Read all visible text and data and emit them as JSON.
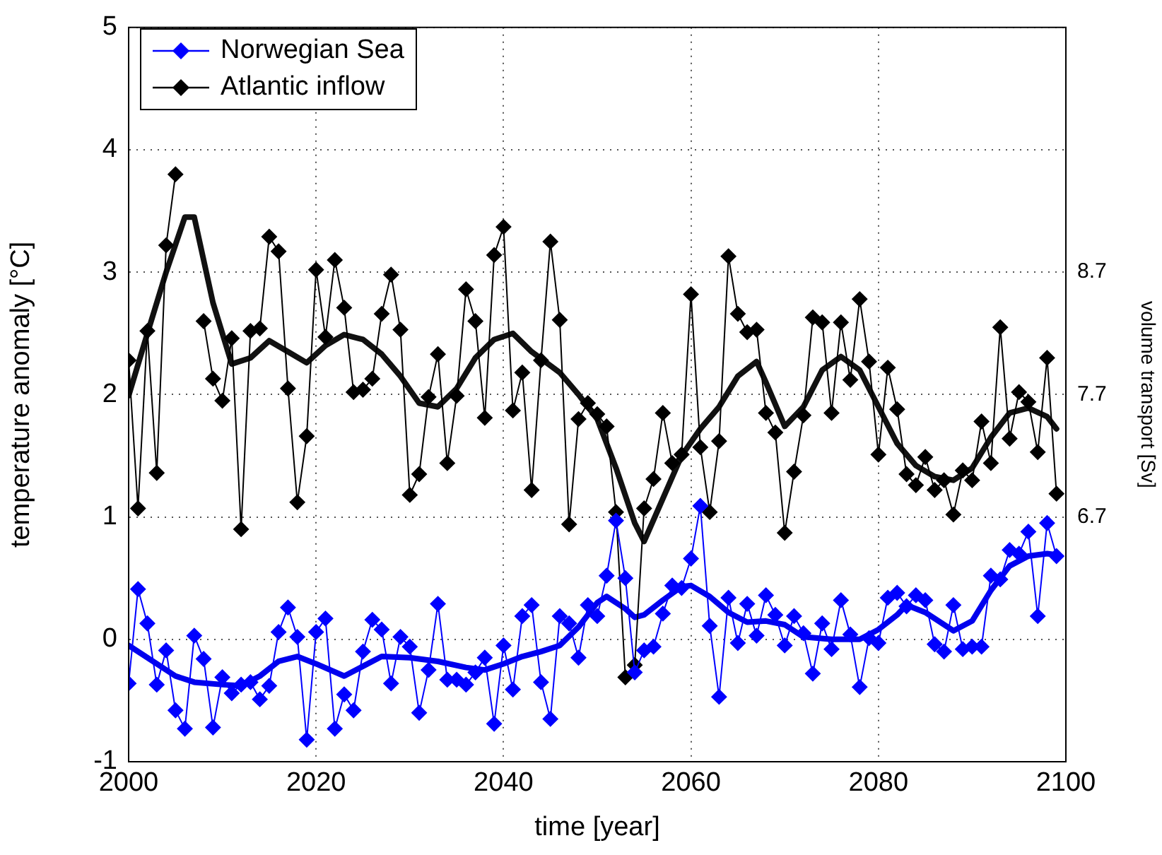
{
  "chart_data": {
    "type": "line",
    "xlabel": "time [year]",
    "ylabel": "temperature anomaly [°C]",
    "y2label": "volume transport [Sv]",
    "x": [
      2000,
      2001,
      2002,
      2003,
      2004,
      2005,
      2006,
      2007,
      2008,
      2009,
      2010,
      2011,
      2012,
      2013,
      2014,
      2015,
      2016,
      2017,
      2018,
      2019,
      2020,
      2021,
      2022,
      2023,
      2024,
      2025,
      2026,
      2027,
      2028,
      2029,
      2030,
      2031,
      2032,
      2033,
      2034,
      2035,
      2036,
      2037,
      2038,
      2039,
      2040,
      2041,
      2042,
      2043,
      2044,
      2045,
      2046,
      2047,
      2048,
      2049,
      2050,
      2051,
      2052,
      2053,
      2054,
      2055,
      2056,
      2057,
      2058,
      2059,
      2060,
      2061,
      2062,
      2063,
      2064,
      2065,
      2066,
      2067,
      2068,
      2069,
      2070,
      2071,
      2072,
      2073,
      2074,
      2075,
      2076,
      2077,
      2078,
      2079,
      2080,
      2081,
      2082,
      2083,
      2084,
      2085,
      2086,
      2087,
      2088,
      2089,
      2090,
      2091,
      2092,
      2093,
      2094,
      2095,
      2096,
      2097,
      2098,
      2099
    ],
    "series": [
      {
        "name": "Norwegian Sea",
        "color": "#0000ff",
        "marker": "diamond",
        "values": [
          -0.36,
          0.41,
          0.13,
          -0.37,
          -0.09,
          -0.58,
          -0.73,
          0.03,
          -0.16,
          -0.72,
          -0.31,
          -0.44,
          -0.37,
          -0.35,
          -0.49,
          -0.38,
          0.06,
          0.26,
          0.02,
          -0.82,
          0.06,
          0.17,
          -0.73,
          -0.45,
          -0.58,
          -0.1,
          0.16,
          0.08,
          -0.36,
          0.02,
          -0.06,
          -0.6,
          -0.25,
          0.29,
          -0.33,
          -0.33,
          -0.37,
          -0.27,
          -0.15,
          -0.69,
          -0.05,
          -0.41,
          0.19,
          0.28,
          -0.35,
          -0.65,
          0.19,
          0.13,
          -0.15,
          0.28,
          0.19,
          0.52,
          0.97,
          0.5,
          -0.27,
          -0.09,
          -0.06,
          0.21,
          0.44,
          0.42,
          0.66,
          1.09,
          0.11,
          -0.47,
          0.34,
          -0.03,
          0.29,
          0.03,
          0.36,
          0.2,
          -0.05,
          0.19,
          0.05,
          -0.28,
          0.13,
          -0.08,
          0.32,
          0.04,
          -0.39,
          0.01,
          -0.03,
          0.34,
          0.38,
          0.27,
          0.36,
          0.32,
          -0.04,
          -0.1,
          0.28,
          -0.08,
          -0.06,
          -0.06,
          0.52,
          0.49,
          0.73,
          0.7,
          0.88,
          0.19,
          0.95,
          0.68
        ]
      },
      {
        "name": "Atlantic inflow",
        "color": "#000000",
        "marker": "diamond",
        "values": [
          2.28,
          1.07,
          2.52,
          1.36,
          3.22,
          3.8,
          null,
          null,
          2.6,
          2.13,
          1.95,
          2.46,
          0.9,
          2.52,
          2.54,
          3.29,
          3.17,
          2.05,
          1.12,
          1.66,
          3.02,
          2.47,
          3.1,
          2.71,
          2.02,
          2.04,
          2.13,
          2.66,
          2.98,
          2.53,
          1.18,
          1.35,
          1.98,
          2.33,
          1.44,
          1.99,
          2.86,
          2.6,
          1.81,
          3.14,
          3.37,
          1.87,
          2.18,
          1.22,
          2.28,
          3.25,
          2.61,
          0.94,
          1.8,
          1.93,
          1.84,
          1.74,
          1.04,
          -0.31,
          -0.21,
          1.07,
          1.31,
          1.85,
          1.44,
          1.51,
          2.82,
          1.57,
          1.04,
          1.62,
          3.13,
          2.66,
          2.51,
          2.53,
          1.85,
          1.69,
          0.87,
          1.37,
          1.83,
          2.63,
          2.59,
          1.85,
          2.59,
          2.12,
          2.78,
          2.27,
          1.51,
          2.22,
          1.88,
          1.35,
          1.26,
          1.49,
          1.22,
          1.3,
          1.02,
          1.38,
          1.3,
          1.78,
          1.44,
          2.55,
          1.64,
          2.02,
          1.94,
          1.53,
          2.3,
          1.19
        ]
      },
      {
        "color": "#0000ee",
        "marker": "none",
        "x": [
          2000,
          2003,
          2005,
          2007,
          2010,
          2012,
          2014,
          2016,
          2018,
          2020,
          2023,
          2025,
          2027,
          2030,
          2033,
          2036,
          2038,
          2040,
          2042,
          2044,
          2046,
          2048,
          2050,
          2051,
          2053,
          2054,
          2055,
          2057,
          2059,
          2060,
          2062,
          2064,
          2066,
          2068,
          2070,
          2072,
          2075,
          2078,
          2080,
          2082,
          2083,
          2085,
          2088,
          2090,
          2092,
          2094,
          2096,
          2098,
          2099
        ],
        "values": [
          -0.05,
          -0.2,
          -0.3,
          -0.35,
          -0.37,
          -0.38,
          -0.3,
          -0.18,
          -0.14,
          -0.2,
          -0.3,
          -0.22,
          -0.14,
          -0.15,
          -0.18,
          -0.23,
          -0.25,
          -0.2,
          -0.14,
          -0.1,
          -0.05,
          0.1,
          0.3,
          0.35,
          0.25,
          0.18,
          0.2,
          0.32,
          0.43,
          0.44,
          0.35,
          0.22,
          0.14,
          0.15,
          0.12,
          0.02,
          0.0,
          0.0,
          0.08,
          0.2,
          0.28,
          0.22,
          0.07,
          0.15,
          0.4,
          0.6,
          0.68,
          0.7,
          0.69
        ]
      },
      {
        "color": "#111111",
        "marker": "none",
        "x": [
          2000,
          2002,
          2004,
          2006,
          2007,
          2009,
          2011,
          2013,
          2015,
          2017,
          2019,
          2021,
          2023,
          2025,
          2027,
          2029,
          2031,
          2033,
          2035,
          2037,
          2039,
          2041,
          2043,
          2046,
          2048,
          2050,
          2052,
          2054,
          2055,
          2057,
          2059,
          2061,
          2063,
          2065,
          2067,
          2068,
          2070,
          2072,
          2074,
          2076,
          2078,
          2080,
          2082,
          2084,
          2086,
          2088,
          2090,
          2092,
          2094,
          2096,
          2098,
          2099
        ],
        "values": [
          1.99,
          2.5,
          3.0,
          3.45,
          3.45,
          2.75,
          2.25,
          2.3,
          2.44,
          2.35,
          2.26,
          2.4,
          2.49,
          2.45,
          2.33,
          2.15,
          1.93,
          1.9,
          2.05,
          2.3,
          2.45,
          2.5,
          2.35,
          2.18,
          2.0,
          1.8,
          1.4,
          0.95,
          0.8,
          1.15,
          1.5,
          1.72,
          1.9,
          2.15,
          2.27,
          2.1,
          1.74,
          1.9,
          2.2,
          2.31,
          2.2,
          1.9,
          1.6,
          1.42,
          1.33,
          1.3,
          1.4,
          1.65,
          1.85,
          1.89,
          1.82,
          1.72
        ]
      }
    ],
    "xlim": [
      2000,
      2100
    ],
    "xticks": [
      2000,
      2020,
      2040,
      2060,
      2080,
      2100
    ],
    "ylim": [
      -1,
      5
    ],
    "yticks": [
      -1,
      0,
      1,
      2,
      3,
      4,
      5
    ],
    "y2lim": [
      4.7,
      10.7
    ],
    "y2ticks": [
      6.7,
      7.7,
      8.7
    ],
    "grid": true,
    "legend": "top left"
  }
}
